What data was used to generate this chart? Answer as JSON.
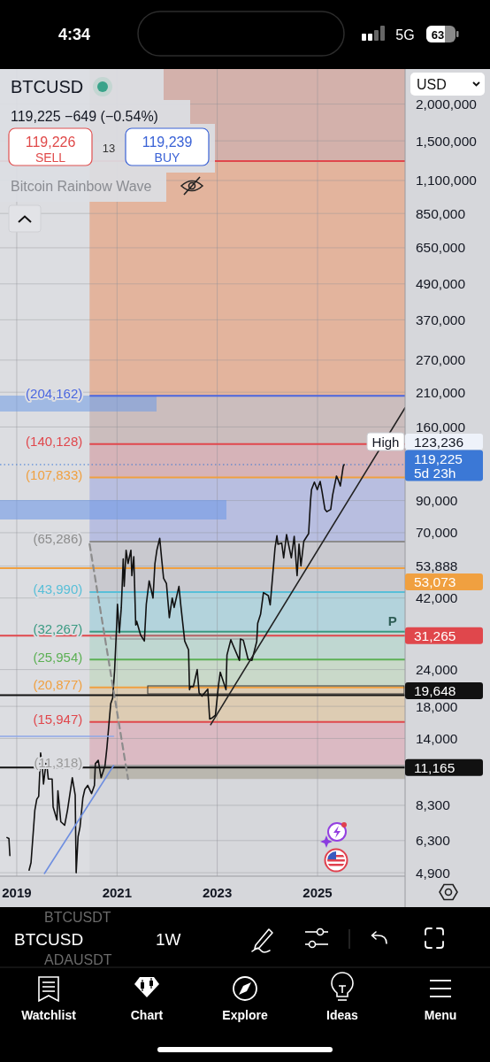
{
  "chart_data": {
    "type": "line",
    "title": "BTCUSD",
    "subtitle": "119,225 −649 (−0.54%)",
    "x": [
      "2018-10-22",
      "2018-11-05",
      "2018-11-12",
      "2018-11-19",
      "2019-03-25",
      "2019-04-01",
      "2019-04-15",
      "2019-05-06",
      "2019-05-13",
      "2019-05-27",
      "2019-06-10",
      "2019-06-24",
      "2019-07-08",
      "2019-07-15",
      "2019-08-05",
      "2019-08-19",
      "2019-09-16",
      "2019-09-23",
      "2019-10-21",
      "2019-10-28",
      "2019-11-18",
      "2019-12-16",
      "2020-01-06",
      "2020-02-10",
      "2020-03-02",
      "2020-03-09",
      "2020-03-23",
      "2020-04-06",
      "2020-04-27",
      "2020-05-11",
      "2020-06-01",
      "2020-06-29",
      "2020-07-20",
      "2020-07-27",
      "2020-08-17",
      "2020-09-07",
      "2020-10-05",
      "2020-10-19",
      "2020-11-02",
      "2020-11-16",
      "2020-11-30",
      "2020-12-14",
      "2020-12-28",
      "2021-01-04",
      "2021-01-18",
      "2021-02-01",
      "2021-02-08",
      "2021-02-15",
      "2021-02-22",
      "2021-03-08",
      "2021-03-22",
      "2021-04-12",
      "2021-04-19",
      "2021-05-03",
      "2021-05-17",
      "2021-05-24",
      "2021-06-21",
      "2021-07-19",
      "2021-08-02",
      "2021-08-23",
      "2021-09-06",
      "2021-09-20",
      "2021-10-04",
      "2021-10-18",
      "2021-11-08",
      "2021-11-22",
      "2021-12-06",
      "2021-12-27",
      "2022-01-17",
      "2022-01-24",
      "2022-02-07",
      "2022-02-21",
      "2022-03-28",
      "2022-04-11",
      "2022-05-09",
      "2022-06-06",
      "2022-06-13",
      "2022-06-20",
      "2022-07-11",
      "2022-08-08",
      "2022-08-22",
      "2022-09-12",
      "2022-10-24",
      "2022-11-07",
      "2022-11-21",
      "2022-12-19",
      "2023-01-09",
      "2023-01-23",
      "2023-03-06",
      "2023-03-13",
      "2023-04-10",
      "2023-04-24",
      "2023-06-12",
      "2023-06-19",
      "2023-07-10",
      "2023-08-14",
      "2023-09-11",
      "2023-10-16",
      "2023-10-23",
      "2023-11-13",
      "2023-12-04",
      "2024-01-08",
      "2024-01-22",
      "2024-02-12",
      "2024-02-26",
      "2024-03-11",
      "2024-03-18",
      "2024-04-15",
      "2024-04-29",
      "2024-05-20",
      "2024-06-24",
      "2024-07-15",
      "2024-08-05",
      "2024-08-19",
      "2024-09-02",
      "2024-09-23",
      "2024-10-28",
      "2024-11-11",
      "2024-11-18",
      "2024-12-09",
      "2024-12-30",
      "2025-01-20",
      "2025-02-03",
      "2025-02-24",
      "2025-03-10",
      "2025-04-07",
      "2025-04-21",
      "2025-05-19",
      "2025-06-02",
      "2025-06-16",
      "2025-07-07",
      "2025-07-14"
    ],
    "series": [
      {
        "color": "#111111",
        "values": [
          6450,
          6400,
          5600,
          null,
          null,
          5000,
          5300,
          7200,
          8000,
          8700,
          8900,
          12500,
          11000,
          9800,
          11800,
          10200,
          10200,
          8200,
          7400,
          9300,
          7300,
          7100,
          8000,
          10300,
          9000,
          4900,
          6500,
          7000,
          8800,
          9400,
          9700,
          9100,
          9700,
          11500,
          11800,
          10300,
          11300,
          13000,
          15500,
          18400,
          19200,
          23800,
          33000,
          40000,
          32000,
          39000,
          47000,
          57000,
          46000,
          61000,
          55000,
          61000,
          50000,
          58000,
          34000,
          35000,
          31500,
          30000,
          40000,
          48000,
          45000,
          42000,
          55000,
          61000,
          67000,
          57000,
          49000,
          47000,
          36000,
          38000,
          42000,
          39000,
          46000,
          39500,
          30000,
          28000,
          20500,
          21000,
          21000,
          24000,
          20000,
          19500,
          20600,
          16300,
          16400,
          16800,
          21000,
          23500,
          20500,
          26900,
          30300,
          29200,
          25800,
          30500,
          30200,
          26000,
          25800,
          29900,
          34500,
          37000,
          43800,
          42800,
          39800,
          52000,
          62000,
          68400,
          64000,
          64500,
          57500,
          69000,
          57500,
          68000,
          50000,
          64000,
          54000,
          65500,
          69500,
          90000,
          98000,
          104000,
          98000,
          104500,
          96500,
          84000,
          82500,
          84000,
          94000,
          109000,
          105500,
          100900,
          117500,
          119225
        ]
      },
      {
        "type": "line",
        "x": [
          "2022-11-14",
          "2026-10-01"
        ],
        "values": [
          15600,
          186000
        ],
        "color": "#222222"
      },
      {
        "type": "line",
        "x": [
          "2020-06-15",
          "2021-03-22"
        ],
        "values": [
          64000,
          10200
        ],
        "color": "#8c8c8c",
        "line_style": "dashed"
      },
      {
        "type": "line",
        "x": [
          "2019-07-22",
          "2020-12-07"
        ],
        "values": [
          4870,
          11330
        ],
        "color": "#6f8fe0"
      },
      {
        "type": "line",
        "x": [
          "2018-09-01",
          "2020-12-07"
        ],
        "values": [
          14240,
          14240
        ],
        "color": "#8fa8e8"
      }
    ],
    "xlim": [
      "2018-09-01",
      "2026-10-01"
    ],
    "xticks": [
      "2019",
      "2021",
      "2023",
      "2025"
    ],
    "ylim": [
      4770,
      2630000
    ],
    "log": true,
    "grid": true,
    "yticks": [
      {
        "value": 2000000,
        "label": "2,000,000"
      },
      {
        "value": 1500000,
        "label": "1,500,000"
      },
      {
        "value": 1100000,
        "label": "1,100,000"
      },
      {
        "value": 850000,
        "label": "850,000"
      },
      {
        "value": 650000,
        "label": "650,000"
      },
      {
        "value": 490000,
        "label": "490,000"
      },
      {
        "value": 370000,
        "label": "370,000"
      },
      {
        "value": 270000,
        "label": "270,000"
      },
      {
        "value": 210000,
        "label": "210,000"
      },
      {
        "value": 160000,
        "label": "160,000"
      },
      {
        "value": 90000,
        "label": "90,000"
      },
      {
        "value": 70000,
        "label": "70,000"
      },
      {
        "value": 53888,
        "label": "53,888"
      },
      {
        "value": 42000,
        "label": "42,000"
      },
      {
        "value": 24000,
        "label": "24,000"
      },
      {
        "value": 18000,
        "label": "18,000"
      },
      {
        "value": 14000,
        "label": "14,000"
      },
      {
        "value": 8300,
        "label": "8,300"
      },
      {
        "value": 6300,
        "label": "6,300"
      },
      {
        "value": 4900,
        "label": "4,900"
      }
    ],
    "bands": [
      {
        "axis": "x",
        "from": "2018-09-01",
        "to": "2020-06-15",
        "color": "#dcdde1"
      },
      {
        "axis": "y",
        "from": 1280000,
        "to": 2630000,
        "color": "#d3b1ab"
      },
      {
        "axis": "y",
        "from": 204162,
        "to": 1280000,
        "color": "#e3b49d"
      },
      {
        "axis": "y",
        "from": 140128,
        "to": 204162,
        "color": "#cbbdbd"
      },
      {
        "axis": "y",
        "from": 107833,
        "to": 140128,
        "color": "#d6b3b8"
      },
      {
        "axis": "y",
        "from": 65286,
        "to": 107833,
        "color": "#b8bee0"
      },
      {
        "axis": "y",
        "from": 43990,
        "to": 65286,
        "color": "#c9c9cf"
      },
      {
        "axis": "y",
        "from": 32267,
        "to": 43990,
        "color": "#b3d3dc"
      },
      {
        "axis": "y",
        "from": 25954,
        "to": 32267,
        "color": "#bfd7d1"
      },
      {
        "axis": "y",
        "from": 20877,
        "to": 25954,
        "color": "#c9d9c9"
      },
      {
        "axis": "y",
        "from": 15947,
        "to": 20877,
        "color": "#ddccb3"
      },
      {
        "axis": "y",
        "from": 11318,
        "to": 15947,
        "color": "#dbbac3"
      },
      {
        "axis": "y",
        "from": 10200,
        "to": 11318,
        "color": "#bab7af"
      }
    ],
    "ref_lines": [
      {
        "axis": "y",
        "value": 1280000,
        "color": "#e0474c"
      },
      {
        "axis": "y",
        "value": 204162,
        "label": "(204,162)",
        "color": "#4a66e0"
      },
      {
        "axis": "y",
        "value": 140128,
        "label": "(140,128)",
        "color": "#e0474c"
      },
      {
        "axis": "y",
        "value": 119225,
        "color": "#3b78d6",
        "line_style": "dotted"
      },
      {
        "axis": "y",
        "value": 107833,
        "label": "(107,833)",
        "color": "#f0a040"
      },
      {
        "axis": "y",
        "value": 65286,
        "label": "(65,286)",
        "color": "#8c8c8c"
      },
      {
        "axis": "y",
        "value": 53073,
        "color": "#f0a040"
      },
      {
        "axis": "y",
        "value": 43990,
        "label": "(43,990)",
        "color": "#58bfd8"
      },
      {
        "axis": "y",
        "value": 32267,
        "label": "(32,267)",
        "color": "#3a9a82"
      },
      {
        "axis": "y",
        "value": 31265,
        "color": "#e0474c"
      },
      {
        "axis": "y",
        "value": 25954,
        "label": "(25,954)",
        "color": "#5cb054"
      },
      {
        "axis": "y",
        "value": 20877,
        "label": "(20,877)",
        "color": "#f0a040"
      },
      {
        "axis": "y",
        "value": 19648,
        "color": "#111111"
      },
      {
        "axis": "y",
        "value": 15947,
        "label": "(15,947)",
        "color": "#e0474c"
      },
      {
        "axis": "y",
        "value": 11318,
        "label": "(11,318)",
        "color": "#9a9a9a"
      },
      {
        "axis": "y",
        "value": 11165,
        "color": "#111111"
      }
    ],
    "annotations": [
      "119,226",
      "SELL",
      "13",
      "119,239",
      "BUY",
      "Bitcoin Rainbow Wave",
      "USD",
      "4:34",
      "5G",
      "63",
      "BTCUSDT",
      "BTCUSD",
      "1W",
      "ADAUSDT",
      "Watchlist",
      "Chart",
      "Explore",
      "Ideas",
      "Menu",
      "123,236",
      "High",
      {
        "text": "119,225\n5d 23h",
        "x": "2026-10-01",
        "y": 119225
      },
      {
        "text": "53,073",
        "x": "2026-10-01",
        "y": 53073
      },
      {
        "text": "31,265",
        "x": "2026-10-01",
        "y": 31265
      },
      {
        "text": "19,648",
        "x": "2026-10-01",
        "y": 19648
      },
      {
        "text": "11,165",
        "x": "2026-10-01",
        "y": 11165
      },
      {
        "text": "P",
        "x": "2026-07",
        "y": 32267
      }
    ]
  }
}
